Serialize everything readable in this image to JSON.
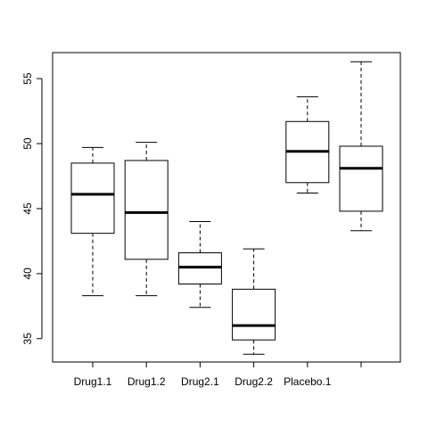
{
  "chart_data": {
    "type": "boxplot",
    "title": "",
    "xlabel": "",
    "ylabel": "",
    "ylim": [
      33.2,
      57.0
    ],
    "yticks": [
      35,
      40,
      45,
      50,
      55
    ],
    "ytick_labels": [
      "35",
      "40",
      "45",
      "50",
      "55"
    ],
    "categories": [
      "Drug1.1",
      "Drug1.2",
      "Drug2.1",
      "Drug2.2",
      "Placebo.1",
      ""
    ],
    "boxes": [
      {
        "label": "Drug1.1",
        "whisker_low": 38.3,
        "q1": 43.1,
        "median": 46.1,
        "q3": 48.5,
        "whisker_high": 49.7
      },
      {
        "label": "Drug1.2",
        "whisker_low": 38.3,
        "q1": 41.1,
        "median": 44.7,
        "q3": 48.7,
        "whisker_high": 50.1
      },
      {
        "label": "Drug2.1",
        "whisker_low": 37.4,
        "q1": 39.2,
        "median": 40.5,
        "q3": 41.6,
        "whisker_high": 44.0
      },
      {
        "label": "Drug2.2",
        "whisker_low": 33.8,
        "q1": 34.9,
        "median": 36.0,
        "q3": 38.8,
        "whisker_high": 41.9
      },
      {
        "label": "Placebo.1",
        "whisker_low": 46.2,
        "q1": 47.0,
        "median": 49.4,
        "q3": 51.7,
        "whisker_high": 53.6
      },
      {
        "label": "",
        "whisker_low": 43.3,
        "q1": 44.8,
        "median": 48.1,
        "q3": 49.8,
        "whisker_high": 56.3
      }
    ],
    "colors": {
      "box_fill": "#ffffff",
      "stroke": "#000000"
    },
    "grid": false,
    "legend": "none"
  }
}
